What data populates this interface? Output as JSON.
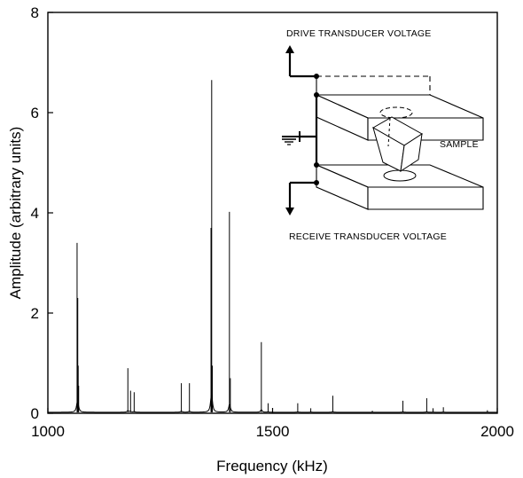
{
  "chart_data": {
    "type": "line",
    "xlabel": "Frequency (kHz)",
    "ylabel": "Amplitude (arbitrary units)",
    "xlim": [
      1000,
      2000
    ],
    "ylim": [
      0,
      8
    ],
    "xticks": [
      "1000",
      "1500",
      "2000"
    ],
    "yticks": [
      "0",
      "2",
      "4",
      "6",
      "8"
    ],
    "grid": false,
    "baseline": 0.02,
    "peaks": [
      {
        "x": 1065,
        "y": 3.4
      },
      {
        "x": 1066.5,
        "y": 2.3
      },
      {
        "x": 1067.5,
        "y": 0.95
      },
      {
        "x": 1068.5,
        "y": 0.55
      },
      {
        "x": 1178,
        "y": 0.9
      },
      {
        "x": 1184,
        "y": 0.45
      },
      {
        "x": 1192,
        "y": 0.42
      },
      {
        "x": 1297,
        "y": 0.6
      },
      {
        "x": 1315,
        "y": 0.6
      },
      {
        "x": 1363,
        "y": 3.7
      },
      {
        "x": 1364.5,
        "y": 6.65
      },
      {
        "x": 1366,
        "y": 0.95
      },
      {
        "x": 1404,
        "y": 4.02
      },
      {
        "x": 1406,
        "y": 0.7
      },
      {
        "x": 1475,
        "y": 1.42
      },
      {
        "x": 1490,
        "y": 0.2
      },
      {
        "x": 1556,
        "y": 0.2
      },
      {
        "x": 1585,
        "y": 0.1
      },
      {
        "x": 1634,
        "y": 0.35
      },
      {
        "x": 1722,
        "y": 0.05
      },
      {
        "x": 1790,
        "y": 0.25
      },
      {
        "x": 1843,
        "y": 0.3
      },
      {
        "x": 1857,
        "y": 0.1
      },
      {
        "x": 1880,
        "y": 0.12
      },
      {
        "x": 1978,
        "y": 0.06
      }
    ],
    "inset": {
      "drive_label": "DRIVE TRANSDUCER VOLTAGE",
      "receive_label": "RECEIVE TRANSDUCER VOLTAGE",
      "sample_label": "SAMPLE"
    }
  }
}
